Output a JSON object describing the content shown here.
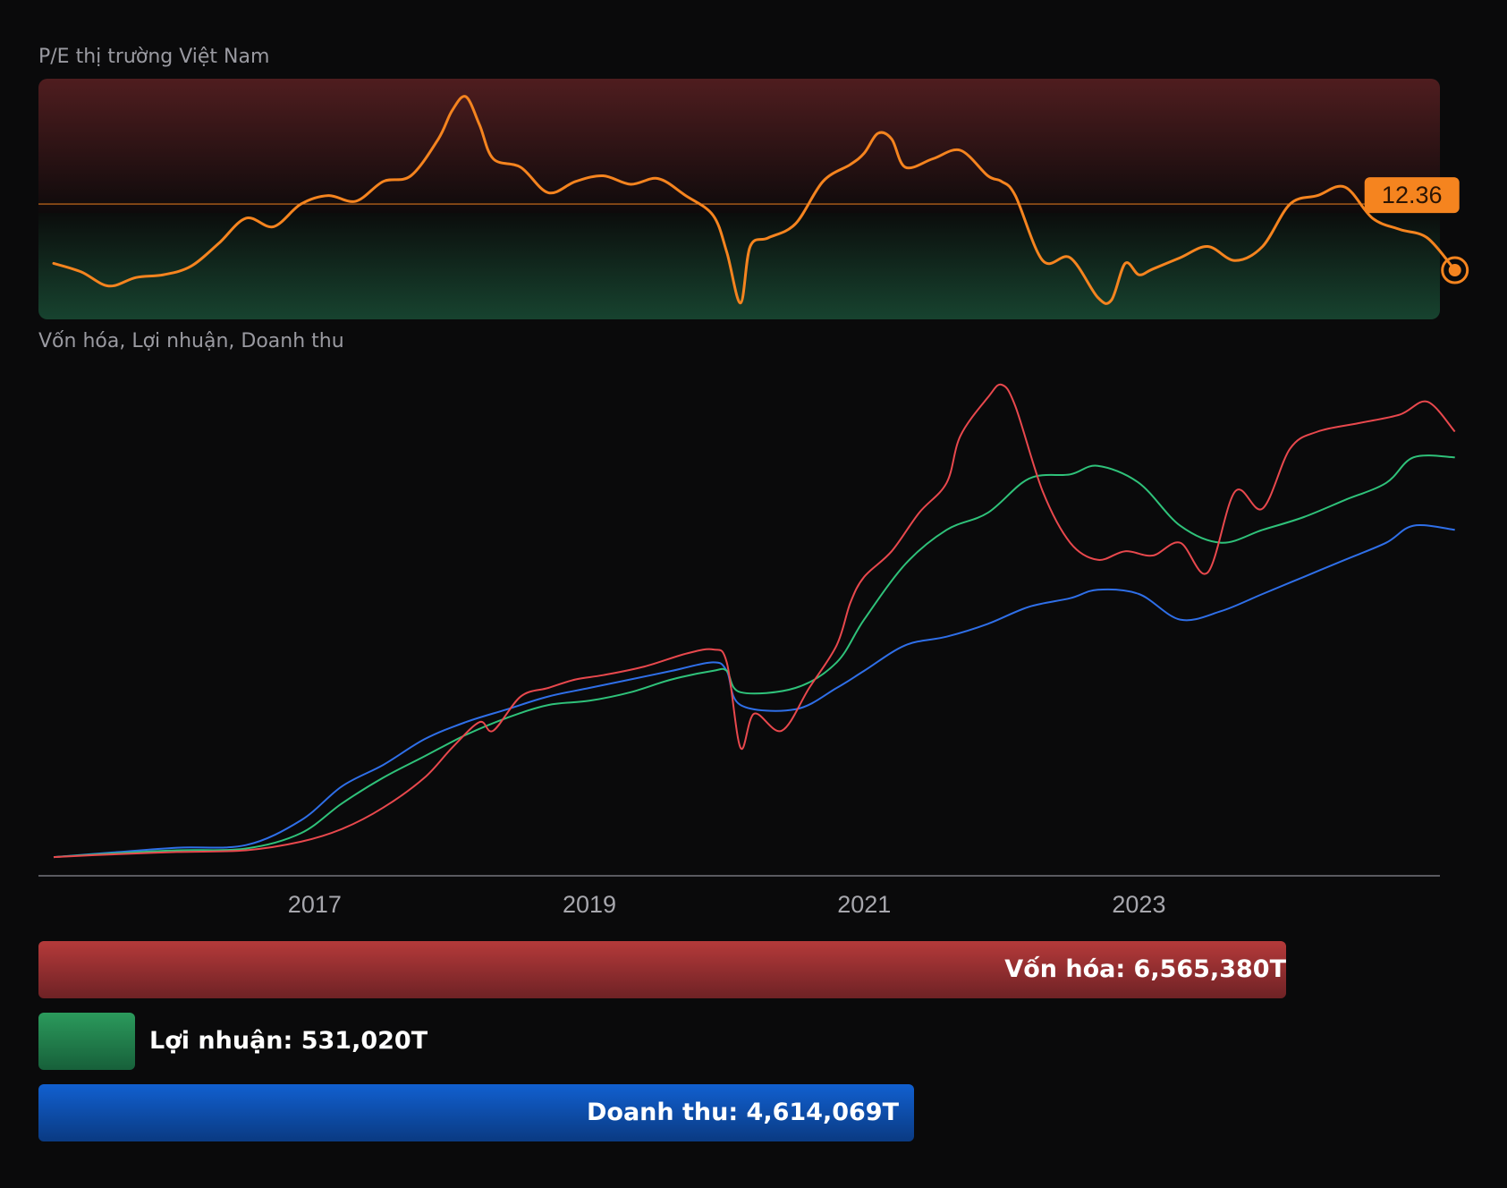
{
  "pe_chart": {
    "title": "P/E thị trường Việt Nam",
    "current_value_label": "12.36",
    "colors": {
      "line": "#f5841f",
      "upper_zone": "#4f1d1f",
      "lower_zone": "#17432f"
    }
  },
  "main_chart": {
    "title": "Vốn hóa, Lợi nhuận, Doanh thu",
    "x_ticks": [
      "2017",
      "2019",
      "2021",
      "2023"
    ],
    "colors": {
      "von_hoa": "#e8484d",
      "loi_nhuan": "#2fc27a",
      "doanh_thu": "#2f6fe8"
    }
  },
  "legend": {
    "von_hoa": "Vốn hóa: 6,565,380T",
    "loi_nhuan": "Lợi nhuận: 531,020T",
    "doanh_thu": "Doanh thu: 4,614,069T"
  },
  "chart_data": [
    {
      "type": "line",
      "title": "P/E thị trường Việt Nam",
      "x_range": [
        2015.1,
        2025.35
      ],
      "reference_value": 14.7,
      "series": [
        {
          "x": [
            2015.1,
            2015.3,
            2015.5,
            2015.7,
            2015.9,
            2016.1,
            2016.3,
            2016.5,
            2016.7,
            2016.9,
            2017.1,
            2017.3,
            2017.5,
            2017.7,
            2017.9,
            2018.0,
            2018.1,
            2018.2,
            2018.3,
            2018.5,
            2018.7,
            2018.9,
            2019.1,
            2019.3,
            2019.5,
            2019.7,
            2019.9,
            2020.0,
            2020.1,
            2020.17,
            2020.3,
            2020.5,
            2020.7,
            2020.9,
            2021.0,
            2021.1,
            2021.2,
            2021.3,
            2021.5,
            2021.7,
            2021.9,
            2022.0,
            2022.1,
            2022.3,
            2022.5,
            2022.7,
            2022.8,
            2022.9,
            2023.0,
            2023.1,
            2023.3,
            2023.5,
            2023.7,
            2023.9,
            2024.1,
            2024.3,
            2024.5,
            2024.7,
            2024.9,
            2025.1,
            2025.3
          ],
          "y": [
            12.6,
            12.3,
            11.8,
            12.1,
            12.2,
            12.5,
            13.3,
            14.2,
            13.9,
            14.7,
            15.0,
            14.8,
            15.5,
            15.7,
            17.0,
            18.0,
            18.5,
            17.5,
            16.3,
            16.0,
            15.1,
            15.5,
            15.7,
            15.4,
            15.6,
            15.0,
            14.3,
            13.0,
            11.2,
            13.2,
            13.5,
            14.0,
            15.5,
            16.1,
            16.5,
            17.2,
            17.0,
            16.0,
            16.3,
            16.6,
            15.7,
            15.5,
            15.0,
            12.7,
            12.8,
            11.4,
            11.3,
            12.6,
            12.2,
            12.4,
            12.8,
            13.2,
            12.7,
            13.2,
            14.7,
            15.0,
            15.3,
            14.2,
            13.8,
            13.5,
            12.36
          ]
        }
      ]
    },
    {
      "type": "line",
      "title": "Vốn hóa, Lợi nhuận, Doanh thu",
      "x_range": [
        2015.1,
        2025.35
      ],
      "x_ticks": [
        "2017",
        "2019",
        "2021",
        "2023"
      ],
      "series": [
        {
          "name": "Vốn hóa",
          "x": [
            2015.1,
            2015.5,
            2016.0,
            2016.5,
            2016.9,
            2017.2,
            2017.5,
            2017.8,
            2018.0,
            2018.2,
            2018.3,
            2018.5,
            2018.7,
            2018.9,
            2019.1,
            2019.4,
            2019.7,
            2019.9,
            2020.0,
            2020.1,
            2020.2,
            2020.4,
            2020.6,
            2020.8,
            2020.9,
            2021.0,
            2021.2,
            2021.4,
            2021.6,
            2021.7,
            2021.9,
            2022.0,
            2022.1,
            2022.3,
            2022.5,
            2022.7,
            2022.9,
            2023.1,
            2023.3,
            2023.5,
            2023.7,
            2023.9,
            2024.1,
            2024.3,
            2024.6,
            2024.9,
            2025.1,
            2025.3
          ],
          "y": [
            0.02,
            0.05,
            0.08,
            0.1,
            0.2,
            0.35,
            0.6,
            0.95,
            1.3,
            1.6,
            1.5,
            1.9,
            2.0,
            2.1,
            2.15,
            2.25,
            2.4,
            2.45,
            2.3,
            1.3,
            1.7,
            1.5,
            2.0,
            2.5,
            3.0,
            3.3,
            3.6,
            4.05,
            4.4,
            4.95,
            5.4,
            5.55,
            5.3,
            4.3,
            3.7,
            3.5,
            3.6,
            3.55,
            3.7,
            3.35,
            4.3,
            4.1,
            4.8,
            5.0,
            5.1,
            5.2,
            5.35,
            5.0
          ]
        },
        {
          "name": "Lợi nhuận",
          "x": [
            2015.1,
            2015.5,
            2016.0,
            2016.5,
            2016.9,
            2017.2,
            2017.5,
            2017.8,
            2018.1,
            2018.4,
            2018.7,
            2019.0,
            2019.3,
            2019.6,
            2019.9,
            2020.0,
            2020.1,
            2020.5,
            2020.8,
            2021.0,
            2021.3,
            2021.6,
            2021.9,
            2022.2,
            2022.5,
            2022.7,
            2023.0,
            2023.3,
            2023.6,
            2023.9,
            2024.2,
            2024.5,
            2024.8,
            2025.0,
            2025.3
          ],
          "y": [
            0.02,
            0.06,
            0.1,
            0.12,
            0.3,
            0.65,
            0.95,
            1.2,
            1.45,
            1.65,
            1.8,
            1.85,
            1.95,
            2.1,
            2.2,
            2.2,
            1.95,
            2.0,
            2.3,
            2.8,
            3.45,
            3.85,
            4.05,
            4.45,
            4.5,
            4.6,
            4.4,
            3.9,
            3.7,
            3.85,
            4.0,
            4.2,
            4.4,
            4.7,
            4.7
          ]
        },
        {
          "name": "Doanh thu",
          "x": [
            2015.1,
            2015.5,
            2016.0,
            2016.5,
            2016.9,
            2017.2,
            2017.5,
            2017.8,
            2018.1,
            2018.4,
            2018.7,
            2019.0,
            2019.3,
            2019.6,
            2019.9,
            2020.0,
            2020.1,
            2020.5,
            2020.8,
            2021.0,
            2021.3,
            2021.6,
            2021.9,
            2022.2,
            2022.5,
            2022.7,
            2023.0,
            2023.3,
            2023.6,
            2023.9,
            2024.2,
            2024.5,
            2024.8,
            2025.0,
            2025.3
          ],
          "y": [
            0.02,
            0.07,
            0.13,
            0.16,
            0.45,
            0.85,
            1.1,
            1.4,
            1.6,
            1.75,
            1.9,
            2.0,
            2.1,
            2.2,
            2.3,
            2.2,
            1.8,
            1.75,
            2.0,
            2.2,
            2.5,
            2.6,
            2.75,
            2.95,
            3.05,
            3.15,
            3.1,
            2.8,
            2.9,
            3.1,
            3.3,
            3.5,
            3.7,
            3.9,
            3.85
          ]
        }
      ]
    }
  ]
}
